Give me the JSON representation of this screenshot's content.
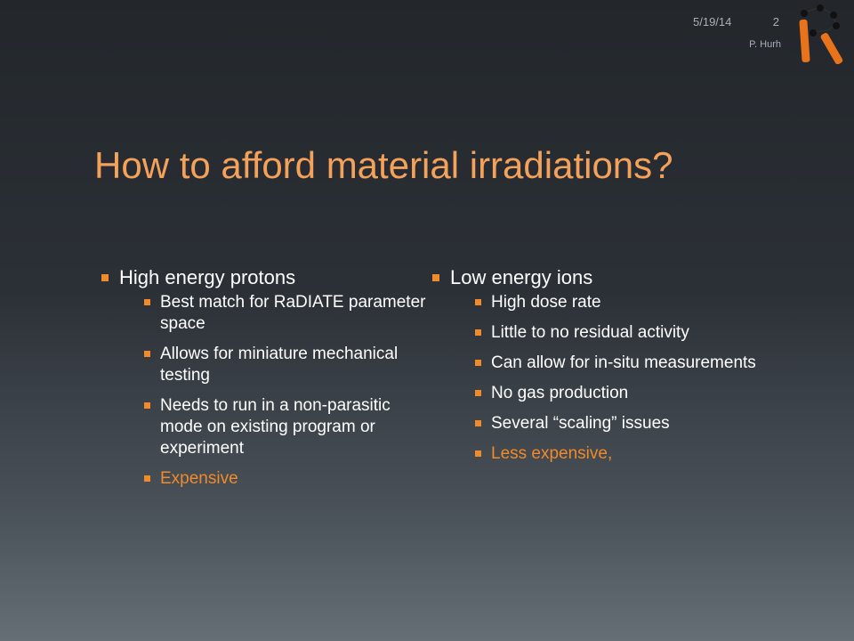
{
  "header": {
    "date": "5/19/14",
    "page_number": "2",
    "author": "P. Hurh"
  },
  "logo": {
    "icon": "radiate-r-logo-icon",
    "accent_color": "#e8731a"
  },
  "slide": {
    "title": "How to afford material irradiations?",
    "title_color": "#f4a25a",
    "accent_color": "#f08a2a",
    "columns": [
      {
        "heading": "High energy protons",
        "items": [
          "Best match for RaDIATE parameter space",
          "Allows for miniature mechanical testing",
          "Needs to run in a non-parasitic mode on existing program or experiment",
          "Expensive"
        ],
        "highlight_index": 3
      },
      {
        "heading": "Low energy ions",
        "items": [
          "High dose rate",
          "Little to no residual activity",
          "Can allow for in-situ measurements",
          "No gas production",
          "Several “scaling” issues",
          "Less expensive,"
        ],
        "highlight_index": 5
      }
    ]
  }
}
